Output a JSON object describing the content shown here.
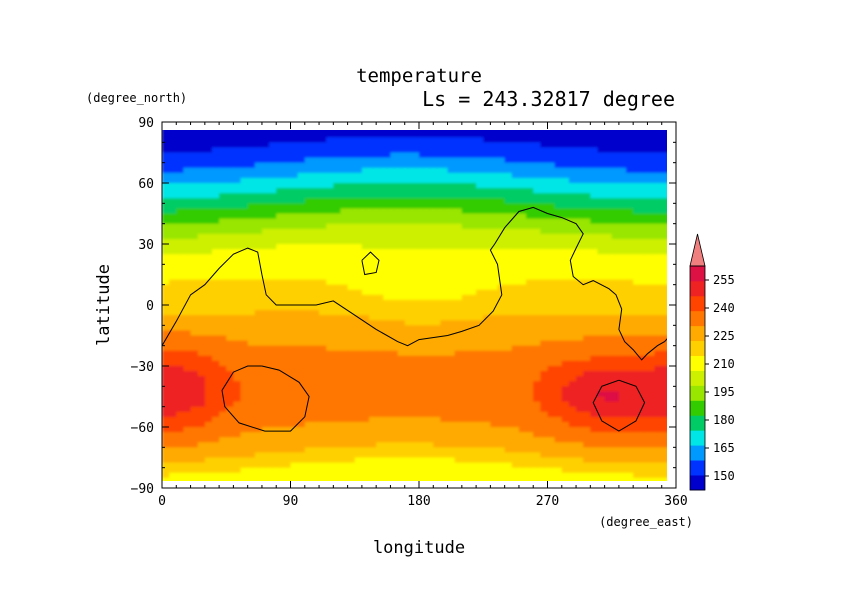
{
  "chart_data": {
    "type": "heatmap",
    "title": "temperature",
    "subtitle": "Ls = 243.32817 degree",
    "xlabel": "longitude",
    "ylabel": "latitude",
    "x_unit": "(degree_east)",
    "y_unit": "(degree_north)",
    "xlim": [
      0,
      360
    ],
    "ylim": [
      -90,
      90
    ],
    "xticks": [
      0,
      90,
      180,
      270,
      360
    ],
    "yticks": [
      90,
      60,
      30,
      0,
      -30,
      -60,
      -90
    ],
    "colorbar": {
      "levels": [
        150,
        165,
        180,
        195,
        210,
        225,
        240,
        255
      ],
      "min": 142.5,
      "max": 262.5,
      "colors": [
        "#0000cc",
        "#0033ff",
        "#0099ff",
        "#00e6e6",
        "#00cc66",
        "#33cc00",
        "#99e600",
        "#ccf000",
        "#ffff00",
        "#ffd000",
        "#ffaa00",
        "#ff7700",
        "#ff4400",
        "#ee2222",
        "#dd1144"
      ],
      "overflow_color": "#f08080"
    },
    "latitude_profile": [
      {
        "lat": 85,
        "t": 147
      },
      {
        "lat": 75,
        "t": 152
      },
      {
        "lat": 60,
        "t": 168
      },
      {
        "lat": 50,
        "t": 180
      },
      {
        "lat": 40,
        "t": 192
      },
      {
        "lat": 30,
        "t": 202
      },
      {
        "lat": 20,
        "t": 208
      },
      {
        "lat": 10,
        "t": 212
      },
      {
        "lat": 0,
        "t": 216
      },
      {
        "lat": -10,
        "t": 222
      },
      {
        "lat": -20,
        "t": 225
      },
      {
        "lat": -30,
        "t": 228
      },
      {
        "lat": -45,
        "t": 229
      },
      {
        "lat": -60,
        "t": 225
      },
      {
        "lat": -70,
        "t": 220
      },
      {
        "lat": -78,
        "t": 212
      },
      {
        "lat": -85,
        "t": 203
      }
    ],
    "features": [
      {
        "lon": 15,
        "lat": -40,
        "dlon": 25,
        "dlat": 15,
        "dt": 12
      },
      {
        "lon": 320,
        "lat": -45,
        "dlon": 35,
        "dlat": 15,
        "dt": 15
      },
      {
        "lon": 300,
        "lat": -42,
        "dlon": 20,
        "dlat": 8,
        "dt": 5
      },
      {
        "lon": 180,
        "lat": 5,
        "dlon": 45,
        "dlat": 20,
        "dt": -7
      }
    ],
    "contours": [
      [
        [
          0,
          -20
        ],
        [
          10,
          -8
        ],
        [
          20,
          5
        ],
        [
          30,
          10
        ],
        [
          40,
          18
        ],
        [
          50,
          25
        ],
        [
          60,
          28
        ],
        [
          67,
          26
        ],
        [
          70,
          15
        ],
        [
          73,
          5
        ],
        [
          80,
          0
        ],
        [
          95,
          0
        ],
        [
          108,
          0
        ],
        [
          120,
          2
        ],
        [
          135,
          -5
        ],
        [
          150,
          -12
        ],
        [
          165,
          -18
        ],
        [
          172,
          -20
        ],
        [
          180,
          -17
        ],
        [
          200,
          -15
        ],
        [
          210,
          -13
        ],
        [
          222,
          -10
        ],
        [
          232,
          -3
        ],
        [
          238,
          5
        ],
        [
          235,
          20
        ],
        [
          230,
          27
        ],
        [
          233,
          30
        ],
        [
          240,
          38
        ],
        [
          250,
          46
        ],
        [
          260,
          48
        ],
        [
          270,
          45
        ],
        [
          280,
          43
        ],
        [
          290,
          40
        ],
        [
          295,
          35
        ],
        [
          290,
          28
        ],
        [
          286,
          22
        ],
        [
          288,
          14
        ],
        [
          295,
          10
        ],
        [
          302,
          12
        ],
        [
          313,
          8
        ],
        [
          318,
          5
        ],
        [
          322,
          -2
        ],
        [
          320,
          -12
        ],
        [
          324,
          -18
        ],
        [
          330,
          -22
        ],
        [
          336,
          -27
        ],
        [
          340,
          -24
        ],
        [
          347,
          -20
        ],
        [
          352,
          -18
        ],
        [
          360,
          -12
        ]
      ],
      [
        [
          140,
          22
        ],
        [
          146,
          26
        ],
        [
          152,
          22
        ],
        [
          150,
          16
        ],
        [
          142,
          15
        ],
        [
          140,
          22
        ]
      ],
      [
        [
          70,
          -30
        ],
        [
          82,
          -32
        ],
        [
          96,
          -38
        ],
        [
          103,
          -45
        ],
        [
          100,
          -55
        ],
        [
          90,
          -62
        ],
        [
          72,
          -62
        ],
        [
          54,
          -58
        ],
        [
          44,
          -50
        ],
        [
          42,
          -42
        ],
        [
          50,
          -33
        ],
        [
          60,
          -30
        ],
        [
          70,
          -30
        ]
      ],
      [
        [
          320,
          -37
        ],
        [
          332,
          -40
        ],
        [
          338,
          -48
        ],
        [
          332,
          -57
        ],
        [
          320,
          -62
        ],
        [
          308,
          -57
        ],
        [
          302,
          -48
        ],
        [
          308,
          -40
        ],
        [
          320,
          -37
        ]
      ]
    ]
  }
}
